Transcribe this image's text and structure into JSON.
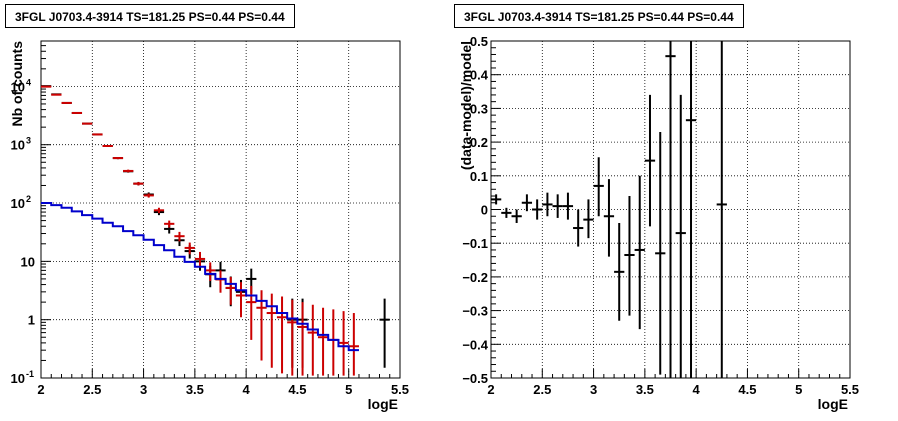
{
  "panels": [
    {
      "title": "3FGL J0703.4-3914 TS=181.25 PS=0.44 PS=0.44"
    },
    {
      "title": "3FGL J0703.4-3914 TS=181.25 PS=0.44 PS=0.44"
    }
  ],
  "colors": {
    "data": "#000000",
    "model": "#cc0000",
    "background_model": "#0000cc",
    "grid": "#000000"
  },
  "chart_data": [
    {
      "type": "line",
      "title": "3FGL J0703.4-3914 TS=181.25 PS=0.44 PS=0.44",
      "xlabel": "logE",
      "ylabel": "Nb of counts",
      "xlim": [
        2,
        5.5
      ],
      "ylim": [
        0.1,
        60000
      ],
      "yscale": "log",
      "grid": true,
      "xticks": [
        "2",
        "2.5",
        "3",
        "3.5",
        "4",
        "4.5",
        "5",
        "5.5"
      ],
      "yticks": [
        "10^{-1}",
        "1",
        "10",
        "10^{2}",
        "10^{3}",
        "10^{4}"
      ],
      "series": [
        {
          "role": "data",
          "style": "errorbar",
          "color": "#000000",
          "x": [
            2.05,
            2.15,
            2.25,
            2.35,
            2.45,
            2.55,
            2.65,
            2.75,
            2.85,
            2.95,
            3.05,
            3.15,
            3.25,
            3.35,
            3.45,
            3.55,
            3.65,
            3.75,
            3.85,
            3.95,
            4.05,
            4.45,
            4.55,
            5.35
          ],
          "y": [
            10100,
            7300,
            5200,
            3500,
            2300,
            1500,
            950,
            590,
            350,
            215,
            140,
            70,
            36,
            23,
            15,
            10,
            6,
            7,
            3.5,
            3,
            5,
            1,
            1,
            1
          ],
          "ylow": [
            9900,
            7210,
            5130,
            3440,
            2250,
            1460,
            920,
            566,
            332,
            200,
            128,
            62,
            30,
            18.3,
            11.2,
            6.9,
            3.6,
            4.4,
            1.7,
            1.35,
            2.8,
            0.15,
            0.15,
            0.15
          ],
          "yhigh": [
            10300,
            7390,
            5270,
            3560,
            2350,
            1540,
            980,
            614,
            368,
            230,
            152,
            78,
            42,
            28,
            19,
            13.5,
            8.4,
            9.8,
            5.5,
            4.8,
            7.5,
            2.3,
            2.3,
            2.3
          ]
        },
        {
          "role": "model",
          "style": "errorbar",
          "color": "#cc0000",
          "x": [
            2.05,
            2.15,
            2.25,
            2.35,
            2.45,
            2.55,
            2.65,
            2.75,
            2.85,
            2.95,
            3.05,
            3.15,
            3.25,
            3.35,
            3.45,
            3.55,
            3.65,
            3.75,
            3.85,
            3.95,
            4.05,
            4.15,
            4.25,
            4.35,
            4.45,
            4.55,
            4.65,
            4.75,
            4.85,
            4.95,
            5.05
          ],
          "y": [
            9900,
            7200,
            5200,
            3500,
            2300,
            1500,
            950,
            590,
            355,
            215,
            135,
            75,
            44,
            27,
            17,
            11,
            7,
            4.9,
            3.5,
            2.6,
            2,
            1.6,
            1.3,
            1.1,
            0.9,
            0.75,
            0.6,
            0.5,
            0.45,
            0.4,
            0.35
          ],
          "ylow": [
            9800,
            7120,
            5130,
            3440,
            2250,
            1460,
            920,
            566,
            336,
            201,
            124,
            67,
            38,
            22,
            13.2,
            8.0,
            4.6,
            2.9,
            1.8,
            1.1,
            0.45,
            0.2,
            0.15,
            0.12,
            0.11,
            0.11,
            0.11,
            0.11,
            0.11,
            0.11,
            0.11
          ],
          "yhigh": [
            10000,
            7280,
            5270,
            3560,
            2350,
            1540,
            980,
            614,
            374,
            229,
            146,
            83,
            50,
            32,
            21,
            14.5,
            9.6,
            7,
            5.4,
            4.4,
            3.8,
            3.2,
            2.8,
            2.5,
            2.2,
            2,
            1.8,
            1.6,
            1.5,
            1.4,
            1.3
          ]
        },
        {
          "role": "background_model",
          "style": "step",
          "color": "#0000cc",
          "x": [
            2.0,
            2.1,
            2.2,
            2.3,
            2.4,
            2.5,
            2.6,
            2.7,
            2.8,
            2.9,
            3.0,
            3.1,
            3.2,
            3.3,
            3.4,
            3.5,
            3.6,
            3.7,
            3.8,
            3.9,
            4.0,
            4.1,
            4.2,
            4.3,
            4.4,
            4.5,
            4.6,
            4.7,
            4.8,
            4.9,
            5.0
          ],
          "y": [
            100,
            92,
            83,
            72,
            62,
            54,
            46,
            40,
            33,
            28,
            23.5,
            19,
            15.5,
            12,
            9.8,
            8.1,
            6.1,
            5.0,
            4.1,
            3.2,
            2.6,
            2.1,
            1.7,
            1.3,
            1.05,
            0.85,
            0.68,
            0.55,
            0.45,
            0.35,
            0.3
          ]
        }
      ]
    },
    {
      "type": "scatter",
      "title": "3FGL J0703.4-3914 TS=181.25 PS=0.44 PS=0.44",
      "xlabel": "logE",
      "ylabel": "(data-model)/model",
      "xlim": [
        2,
        5.5
      ],
      "ylim": [
        -0.5,
        0.5
      ],
      "grid": true,
      "xticks": [
        "2",
        "2.5",
        "3",
        "3.5",
        "4",
        "4.5",
        "5",
        "5.5"
      ],
      "yticks": [
        "−0.5",
        "−0.4",
        "−0.3",
        "−0.2",
        "−0.1",
        "0",
        "0.1",
        "0.2",
        "0.3",
        "0.4",
        "0.5"
      ],
      "series": [
        {
          "role": "residuals",
          "style": "errorbar",
          "color": "#000000",
          "x": [
            2.05,
            2.15,
            2.25,
            2.35,
            2.45,
            2.55,
            2.65,
            2.75,
            2.85,
            2.95,
            3.05,
            3.15,
            3.25,
            3.35,
            3.45,
            3.55,
            3.65,
            3.75,
            3.85,
            3.95,
            4.25
          ],
          "y": [
            0.03,
            -0.01,
            -0.02,
            0.02,
            0.0,
            0.015,
            0.01,
            0.01,
            -0.055,
            -0.03,
            0.07,
            -0.02,
            -0.185,
            -0.135,
            -0.12,
            0.145,
            -0.13,
            0.455,
            -0.07,
            0.265,
            0.015
          ],
          "ylow": [
            0.015,
            -0.025,
            -0.04,
            -0.005,
            -0.03,
            -0.02,
            -0.025,
            -0.03,
            -0.11,
            -0.085,
            -0.02,
            -0.14,
            -0.33,
            -0.315,
            -0.355,
            -0.05,
            -0.49,
            -0.5,
            -0.5,
            -0.5,
            -0.5
          ],
          "yhigh": [
            0.045,
            0.005,
            0.0,
            0.045,
            0.03,
            0.05,
            0.045,
            0.05,
            0.0,
            0.03,
            0.155,
            0.09,
            -0.04,
            0.04,
            0.1,
            0.34,
            0.23,
            0.5,
            0.34,
            0.5,
            0.5
          ]
        }
      ]
    }
  ]
}
